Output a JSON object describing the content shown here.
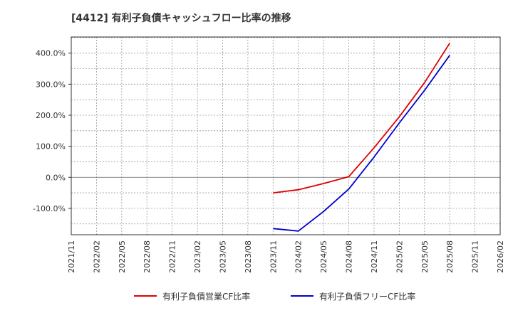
{
  "chart_data": {
    "type": "line",
    "title": "[4412]  有利子負債キャッシュフロー比率の推移",
    "xlabel": "",
    "ylabel": "",
    "x_ticks": [
      "2021/11",
      "2022/02",
      "2022/05",
      "2022/08",
      "2022/11",
      "2023/02",
      "2023/05",
      "2023/08",
      "2023/11",
      "2024/02",
      "2024/05",
      "2024/08",
      "2024/11",
      "2025/02",
      "2025/05",
      "2025/08",
      "2025/11",
      "2026/02"
    ],
    "y_ticks": [
      400,
      300,
      200,
      100,
      0,
      -100
    ],
    "y_tick_labels": [
      "400.0%",
      "300.0%",
      "200.0%",
      "100.0%",
      "0.0%",
      "-100.0%"
    ],
    "ylim": [
      -185,
      452
    ],
    "grid": true,
    "series": [
      {
        "name": "有利子負債営業CF比率",
        "color": "#dd0000",
        "points": [
          {
            "x": "2023/11",
            "y": -50
          },
          {
            "x": "2024/02",
            "y": -40
          },
          {
            "x": "2024/05",
            "y": -20
          },
          {
            "x": "2024/08",
            "y": 2
          },
          {
            "x": "2024/11",
            "y": 95
          },
          {
            "x": "2025/02",
            "y": 195
          },
          {
            "x": "2025/05",
            "y": 305
          },
          {
            "x": "2025/08",
            "y": 432
          }
        ]
      },
      {
        "name": "有利子負債フリーCF比率",
        "color": "#0000cc",
        "points": [
          {
            "x": "2023/11",
            "y": -165
          },
          {
            "x": "2024/02",
            "y": -173
          },
          {
            "x": "2024/05",
            "y": -110
          },
          {
            "x": "2024/08",
            "y": -38
          },
          {
            "x": "2024/11",
            "y": 65
          },
          {
            "x": "2025/02",
            "y": 175
          },
          {
            "x": "2025/05",
            "y": 280
          },
          {
            "x": "2025/08",
            "y": 393
          }
        ]
      }
    ],
    "legend": {
      "position": "bottom",
      "entries": [
        "有利子負債営業CF比率",
        "有利子負債フリーCF比率"
      ]
    }
  }
}
